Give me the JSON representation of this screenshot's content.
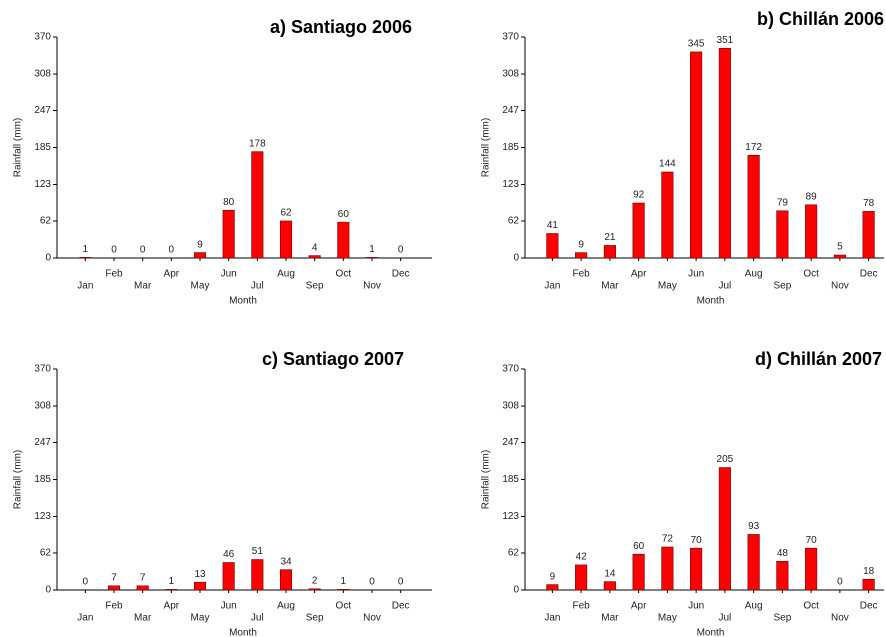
{
  "chart_data": [
    {
      "type": "bar",
      "title": "a) Santiago 2006",
      "y_label": "Rainfall (mm)",
      "x_label": "Month",
      "categories": [
        "Jan",
        "Feb",
        "Mar",
        "Apr",
        "May",
        "Jun",
        "Jul",
        "Aug",
        "Sep",
        "Oct",
        "Nov",
        "Dec"
      ],
      "values": [
        1,
        0,
        0,
        0,
        9,
        80,
        178,
        62,
        4,
        60,
        1,
        0
      ],
      "color": "#ff0000",
      "ylim": [
        0,
        370
      ],
      "yticks": [
        0,
        62,
        123,
        185,
        247,
        308,
        370
      ]
    },
    {
      "type": "bar",
      "title": "b) Chillán 2006",
      "y_label": "Rainfall (mm)",
      "x_label": "Month",
      "categories": [
        "Jan",
        "Feb",
        "Mar",
        "Apr",
        "May",
        "Jun",
        "Jul",
        "Aug",
        "Sep",
        "Oct",
        "Nov",
        "Dec"
      ],
      "values": [
        41,
        9,
        21,
        92,
        144,
        345,
        351,
        172,
        79,
        89,
        5,
        78
      ],
      "color": "#ff0000",
      "ylim": [
        0,
        370
      ],
      "yticks": [
        0,
        62,
        123,
        185,
        247,
        308,
        370
      ]
    },
    {
      "type": "bar",
      "title": "c) Santiago 2007",
      "y_label": "Rainfall (mm)",
      "x_label": "Month",
      "categories": [
        "Jan",
        "Feb",
        "Mar",
        "Apr",
        "May",
        "Jun",
        "Jul",
        "Aug",
        "Sep",
        "Oct",
        "Nov",
        "Dec"
      ],
      "values": [
        0,
        7,
        7,
        1,
        13,
        46,
        51,
        34,
        2,
        1,
        0,
        0
      ],
      "color": "#ff0000",
      "ylim": [
        0,
        370
      ],
      "yticks": [
        0,
        62,
        123,
        185,
        247,
        308,
        370
      ]
    },
    {
      "type": "bar",
      "title": "d) Chillán 2007",
      "y_label": "Rainfall (mm)",
      "x_label": "Month",
      "categories": [
        "Jan",
        "Feb",
        "Mar",
        "Apr",
        "May",
        "Jun",
        "Jul",
        "Aug",
        "Sep",
        "Oct",
        "Nov",
        "Dec"
      ],
      "values": [
        9,
        42,
        14,
        60,
        72,
        70,
        205,
        93,
        48,
        70,
        0,
        18
      ],
      "color": "#ff0000",
      "ylim": [
        0,
        370
      ],
      "yticks": [
        0,
        62,
        123,
        185,
        247,
        308,
        370
      ]
    }
  ]
}
